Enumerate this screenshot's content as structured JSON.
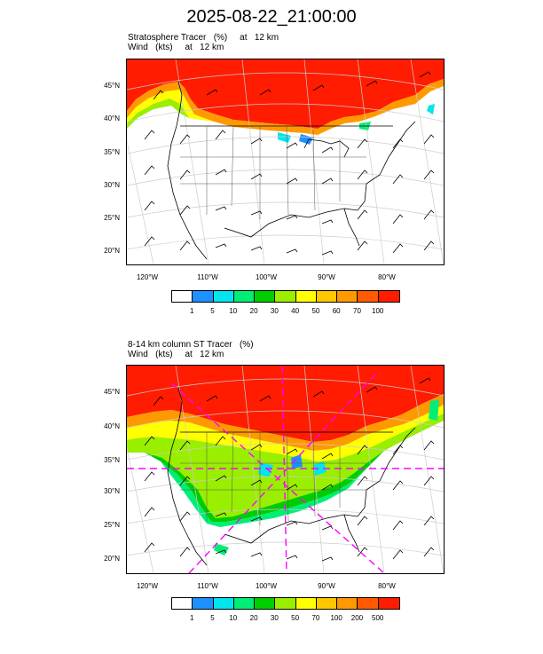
{
  "title": "2025-08-22_21:00:00",
  "panels": [
    {
      "label_line1": "Stratosphere Tracer   (%)     at   12 km",
      "label_line2": "Wind   (kts)     at   12 km",
      "lat_labels": [
        "45°N",
        "40°N",
        "35°N",
        "30°N",
        "25°N",
        "20°N"
      ],
      "lon_labels": [
        "120°W",
        "110°W",
        "100°W",
        "90°W",
        "80°W"
      ],
      "colorbar": {
        "colors": [
          "#ffffff",
          "#1e90ff",
          "#00e5ee",
          "#00ee76",
          "#00cd00",
          "#9aee00",
          "#ffff00",
          "#ffc700",
          "#ff9900",
          "#ff5a00",
          "#ff1c00"
        ],
        "labels": [
          "1",
          "5",
          "10",
          "20",
          "30",
          "40",
          "50",
          "60",
          "70",
          "100"
        ]
      }
    },
    {
      "label_line1": "8-14 km column ST Tracer   (%)",
      "label_line2": "Wind   (kts)     at   12 km",
      "lat_labels": [
        "45°N",
        "40°N",
        "35°N",
        "30°N",
        "25°N",
        "20°N"
      ],
      "lon_labels": [
        "120°W",
        "110°W",
        "100°W",
        "90°W",
        "80°W"
      ],
      "colorbar": {
        "colors": [
          "#ffffff",
          "#1e90ff",
          "#00e5ee",
          "#00ee76",
          "#00cd00",
          "#9aee00",
          "#ffff00",
          "#ffc700",
          "#ff9900",
          "#ff5a00",
          "#ff1c00"
        ],
        "labels": [
          "1",
          "5",
          "10",
          "20",
          "30",
          "50",
          "70",
          "100",
          "200",
          "500"
        ]
      }
    }
  ]
}
